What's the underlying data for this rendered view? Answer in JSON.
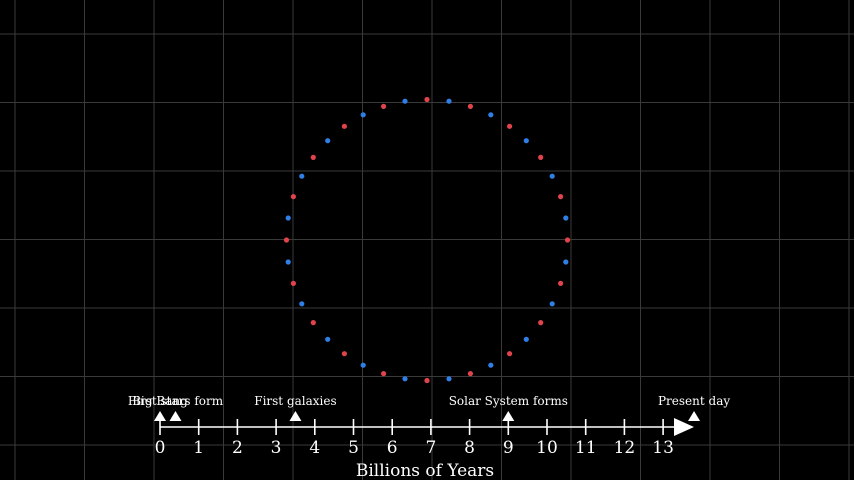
{
  "colors": {
    "background": "#000000",
    "grid": "#3a3a3a",
    "axis": "#ffffff",
    "dot_red": "#e0434c",
    "dot_blue": "#2f7fe6"
  },
  "timeline": {
    "axis_title": "Billions of Years",
    "ticks": [
      "0",
      "1",
      "2",
      "3",
      "4",
      "5",
      "6",
      "7",
      "8",
      "9",
      "10",
      "11",
      "12",
      "13"
    ],
    "events": [
      {
        "label": "Big Bang",
        "value": 0
      },
      {
        "label": "First stars form",
        "value": 0.4
      },
      {
        "label": "First galaxies",
        "value": 3.5
      },
      {
        "label": "Solar System forms",
        "value": 9.0
      },
      {
        "label": "Present day",
        "value": 13.8
      }
    ]
  },
  "ring": {
    "dot_count": 40,
    "colors": [
      "#e0434c",
      "#2f7fe6"
    ]
  }
}
